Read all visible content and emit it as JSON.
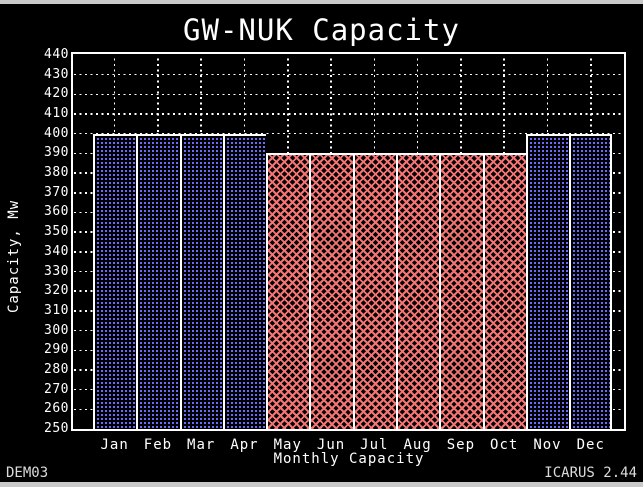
{
  "chart_data": {
    "type": "bar",
    "title": "GW-NUK Capacity",
    "xlabel": "Monthly Capacity",
    "ylabel": "Capacity, Mw",
    "ylim": [
      250,
      440
    ],
    "ytick_step": 10,
    "grid": true,
    "categories": [
      "Jan",
      "Feb",
      "Mar",
      "Apr",
      "May",
      "Jun",
      "Jul",
      "Aug",
      "Sep",
      "Oct",
      "Nov",
      "Dec"
    ],
    "values": [
      400,
      400,
      400,
      400,
      390,
      390,
      390,
      390,
      390,
      390,
      400,
      400
    ],
    "patterns": [
      "blue-dot",
      "blue-dot",
      "blue-dot",
      "blue-dot",
      "red-crosshatch",
      "red-crosshatch",
      "red-crosshatch",
      "red-crosshatch",
      "red-crosshatch",
      "red-crosshatch",
      "blue-dot",
      "blue-dot"
    ],
    "colors": {
      "blue_dot": "#6a6aff",
      "red_crosshatch": "#f47474",
      "frame": "#ffffff",
      "gridline": "#ffffff",
      "background": "#000000",
      "window_border": "#c9c9c9"
    }
  },
  "footer": {
    "left": "DEM03",
    "right": "ICARUS 2.44"
  }
}
